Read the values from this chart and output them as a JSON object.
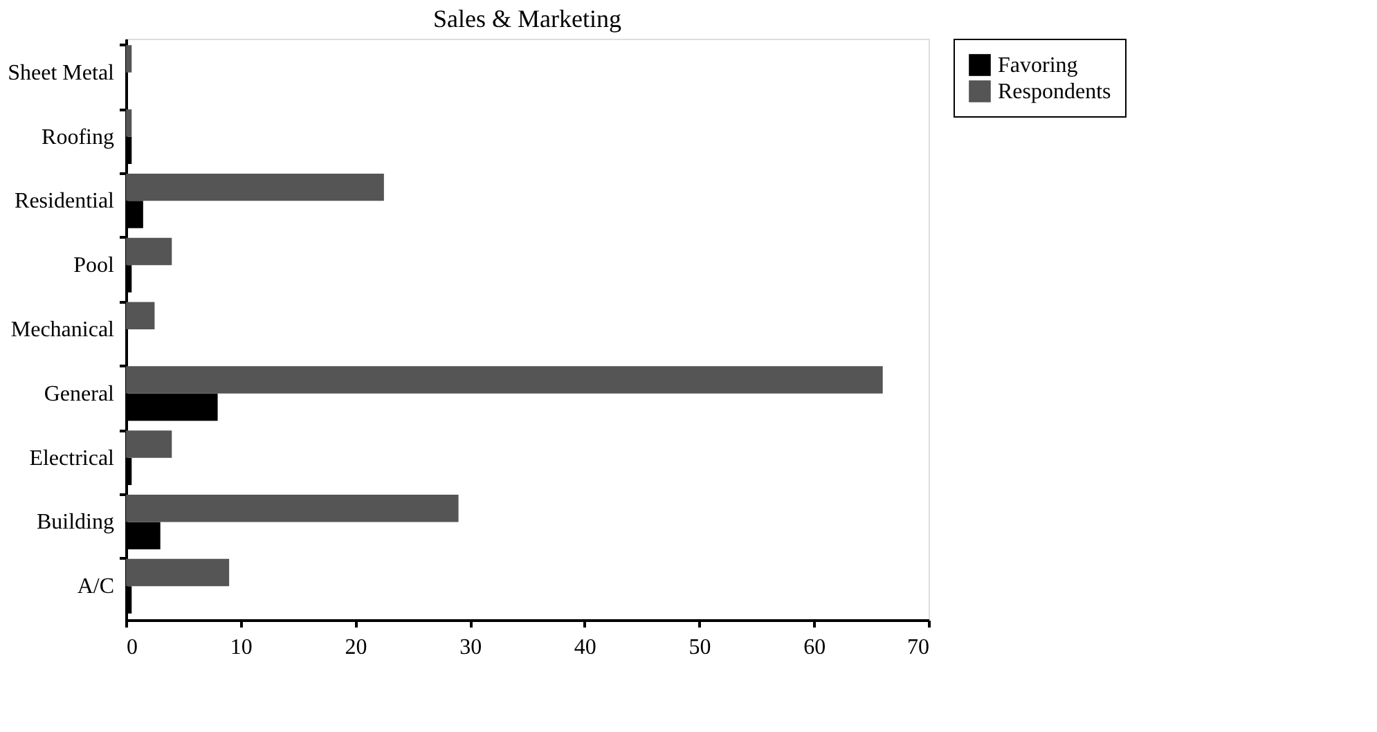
{
  "chart_data": {
    "type": "bar",
    "orientation": "horizontal",
    "title": "Sales & Marketing",
    "categories": [
      "Sheet Metal",
      "Roofing",
      "Residential",
      "Pool",
      "Mechanical",
      "General",
      "Electrical",
      "Building",
      "A/C"
    ],
    "series": [
      {
        "name": "Favoring",
        "color": "#000000",
        "values": [
          null,
          0.5,
          1.5,
          0.5,
          null,
          8,
          0.5,
          3,
          0.5
        ]
      },
      {
        "name": "Respondents",
        "color": "#555555",
        "values": [
          0.5,
          0.5,
          22.5,
          4,
          2.5,
          66,
          4,
          29,
          9
        ]
      }
    ],
    "xlim": [
      0,
      70
    ],
    "xticks": [
      0,
      10,
      20,
      30,
      40,
      50,
      60,
      70
    ],
    "grid": false,
    "legend": "right"
  }
}
